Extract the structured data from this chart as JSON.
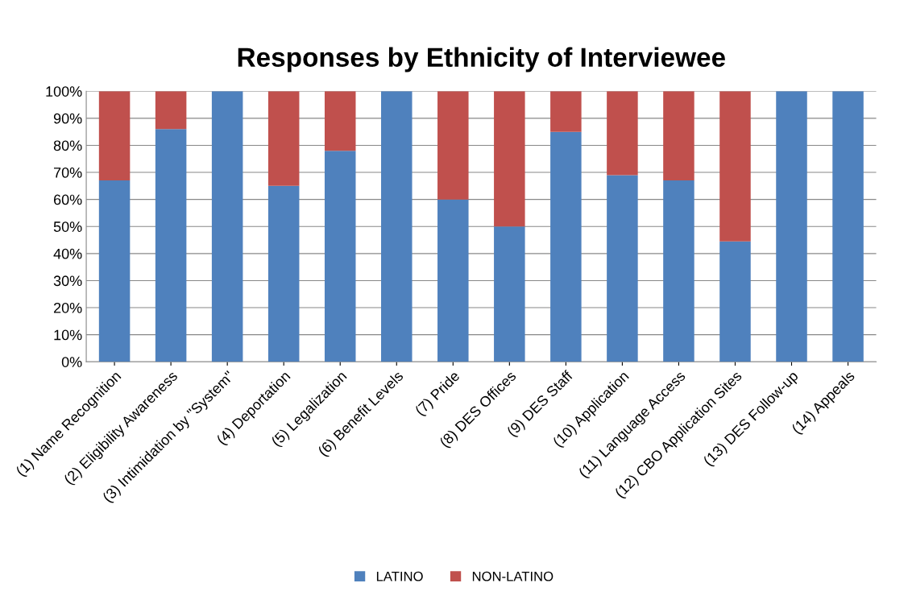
{
  "chart_data": {
    "type": "bar",
    "title": "Responses by Ethnicity of Interviewee",
    "stacked": true,
    "categories": [
      "(1) Name Recognition",
      "(2) Eligibility Awareness",
      "(3) Intimidation by \"System\"",
      "(4) Deportation",
      "(5) Legalization",
      "(6) Benefit Levels",
      "(7) Pride",
      "(8) DES Offices",
      "(9) DES Staff",
      "(10) Application",
      "(11) Language Access",
      "(12) CBO Application Sites",
      "(13) DES Follow-up",
      "(14) Appeals"
    ],
    "series": [
      {
        "name": "LATINO",
        "color": "#4f81bd",
        "values": [
          67,
          86,
          100,
          65,
          78,
          100,
          60,
          50,
          85,
          69,
          67,
          44.5,
          100,
          100
        ]
      },
      {
        "name": "NON-LATINO",
        "color": "#c0504d",
        "values": [
          33,
          14,
          0,
          35,
          22,
          0,
          40,
          50,
          15,
          31,
          33,
          55.5,
          0,
          0
        ]
      }
    ],
    "ylim": [
      0,
      100
    ],
    "yticks": [
      {
        "value": 0,
        "label": "0%"
      },
      {
        "value": 10,
        "label": "10%"
      },
      {
        "value": 20,
        "label": "20%"
      },
      {
        "value": 30,
        "label": "30%"
      },
      {
        "value": 40,
        "label": "40%"
      },
      {
        "value": 50,
        "label": "50%"
      },
      {
        "value": 60,
        "label": "60%"
      },
      {
        "value": 70,
        "label": "70%"
      },
      {
        "value": 80,
        "label": "80%"
      },
      {
        "value": 90,
        "label": "90%"
      },
      {
        "value": 100,
        "label": "100%"
      }
    ],
    "grid": "y",
    "legend": "bottom"
  }
}
